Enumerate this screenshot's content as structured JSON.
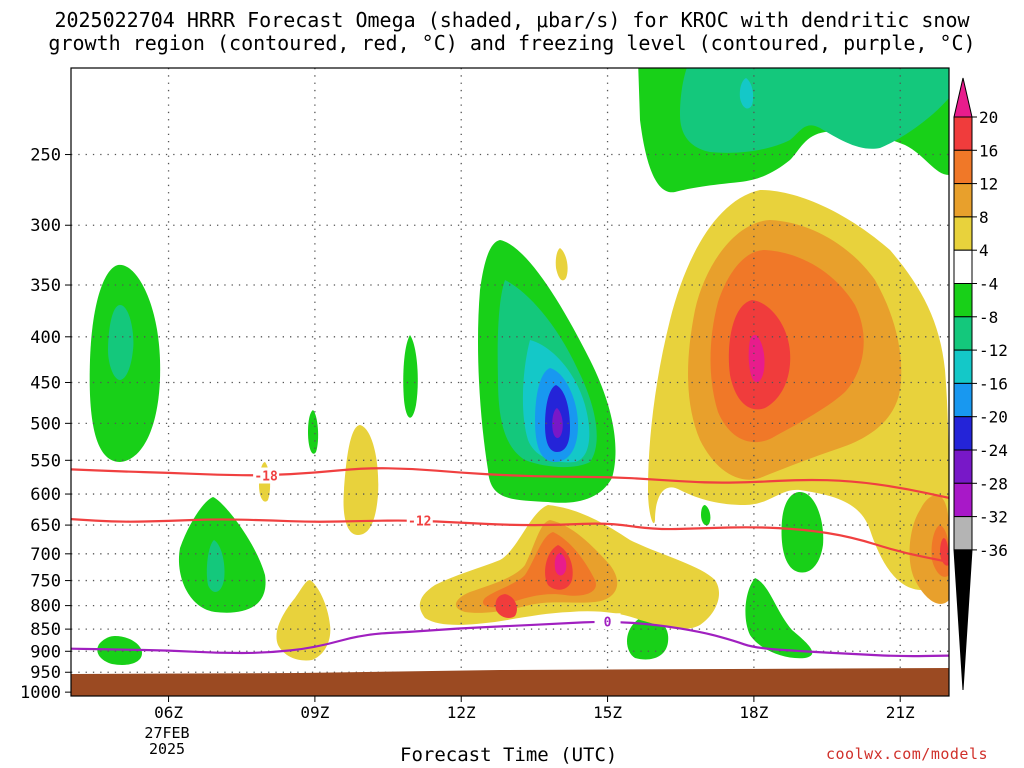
{
  "title": {
    "line1": "2025022704 HRRR Forecast Omega (shaded, μbar/s) for KROC with dendritic snow",
    "line2": "growth region (contoured, red, °C) and freezing level (contoured, purple, °C)"
  },
  "xlabel": "Forecast Time (UTC)",
  "credit": "coolwx.com/models",
  "date_label": [
    "27FEB",
    "2025"
  ],
  "chart_data": {
    "type": "heatmap",
    "x_ticks": [
      {
        "hour": 6,
        "label": "06Z"
      },
      {
        "hour": 9,
        "label": "09Z"
      },
      {
        "hour": 12,
        "label": "12Z"
      },
      {
        "hour": 15,
        "label": "15Z"
      },
      {
        "hour": 18,
        "label": "18Z"
      },
      {
        "hour": 21,
        "label": "21Z"
      }
    ],
    "x_range": [
      4,
      22
    ],
    "y_ticks": [
      250,
      300,
      350,
      400,
      450,
      500,
      550,
      600,
      650,
      700,
      750,
      800,
      850,
      900,
      950,
      1000
    ],
    "y_range_hpa": [
      200,
      1010
    ],
    "y_scale": "log-pressure (inverted)",
    "grid": true,
    "colorbar": {
      "labels": [
        "20",
        "16",
        "12",
        "8",
        "4",
        "-4",
        "-8",
        "-12",
        "-16",
        "-20",
        "-24",
        "-28",
        "-32",
        "-36"
      ],
      "colors": [
        "#e81c8c",
        "#f03c3c",
        "#f07828",
        "#e8a02c",
        "#e8d23c",
        "#ffffff",
        "#18d018",
        "#14c87c",
        "#14c8c8",
        "#1898f0",
        "#2424d8",
        "#7818c8",
        "#a818c8",
        "#b4b4b4",
        "#000000"
      ]
    },
    "contours": [
      {
        "name": "-18",
        "color": "#f04040",
        "label": "-18",
        "label_hour": 8.0,
        "points": [
          [
            4,
            563
          ],
          [
            5,
            566
          ],
          [
            6,
            568
          ],
          [
            7,
            571
          ],
          [
            8,
            572
          ],
          [
            9,
            568
          ],
          [
            10,
            561
          ],
          [
            11,
            562
          ],
          [
            12,
            568
          ],
          [
            13,
            572
          ],
          [
            14,
            574
          ],
          [
            15,
            574
          ],
          [
            16,
            578
          ],
          [
            17,
            583
          ],
          [
            18,
            582
          ],
          [
            19,
            578
          ],
          [
            20,
            580
          ],
          [
            21,
            590
          ],
          [
            22,
            606
          ]
        ]
      },
      {
        "name": "-12",
        "color": "#f04040",
        "label": "-12",
        "label_hour": 11.15,
        "points": [
          [
            4,
            640
          ],
          [
            5,
            645
          ],
          [
            6,
            643
          ],
          [
            7,
            640
          ],
          [
            8,
            642
          ],
          [
            9,
            645
          ],
          [
            10,
            643
          ],
          [
            11,
            642
          ],
          [
            12,
            646
          ],
          [
            13,
            650
          ],
          [
            14,
            650
          ],
          [
            15,
            646
          ],
          [
            16,
            658
          ],
          [
            17,
            655
          ],
          [
            18,
            653
          ],
          [
            19,
            657
          ],
          [
            20,
            670
          ],
          [
            21,
            697
          ],
          [
            22,
            715
          ]
        ]
      },
      {
        "name": "0",
        "color": "#a020c0",
        "label": "0",
        "label_hour": 15.0,
        "points": [
          [
            4,
            894
          ],
          [
            5,
            896
          ],
          [
            6,
            898
          ],
          [
            7,
            904
          ],
          [
            8,
            904
          ],
          [
            9,
            892
          ],
          [
            10,
            861
          ],
          [
            11,
            856
          ],
          [
            12,
            848
          ],
          [
            13,
            843
          ],
          [
            14,
            838
          ],
          [
            15,
            833
          ],
          [
            16,
            840
          ],
          [
            17,
            858
          ],
          [
            17.6,
            876
          ],
          [
            18,
            892
          ],
          [
            19,
            900
          ],
          [
            20,
            906
          ],
          [
            21,
            912
          ],
          [
            22,
            910
          ]
        ]
      }
    ]
  }
}
